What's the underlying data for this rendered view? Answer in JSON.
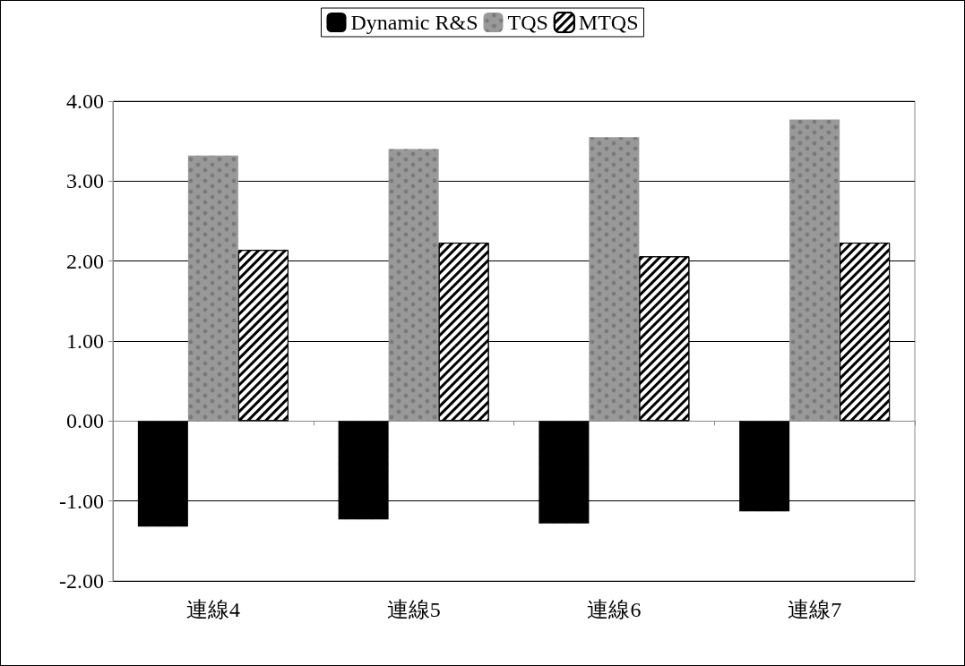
{
  "chart_data": {
    "type": "bar",
    "categories": [
      "連線4",
      "連線5",
      "連線6",
      "連線7"
    ],
    "series": [
      {
        "name": "Dynamic R&S",
        "color": "#000000",
        "values": [
          -1.32,
          -1.23,
          -1.28,
          -1.13
        ]
      },
      {
        "name": "TQS",
        "color": "#999999",
        "values": [
          3.32,
          3.4,
          3.55,
          3.77
        ]
      },
      {
        "name": "MTQS",
        "color": "#000000",
        "values": [
          2.14,
          2.23,
          2.06,
          2.23
        ]
      }
    ],
    "ylim": [
      -2,
      4
    ],
    "yticks": [
      {
        "value": -2,
        "label": "-2.00"
      },
      {
        "value": -1,
        "label": "-1.00"
      },
      {
        "value": 0,
        "label": "0.00"
      },
      {
        "value": 1,
        "label": "1.00"
      },
      {
        "value": 2,
        "label": "2.00"
      },
      {
        "value": 3,
        "label": "3.00"
      },
      {
        "value": 4,
        "label": "4.00"
      }
    ],
    "grid": "y",
    "legend": "top"
  }
}
